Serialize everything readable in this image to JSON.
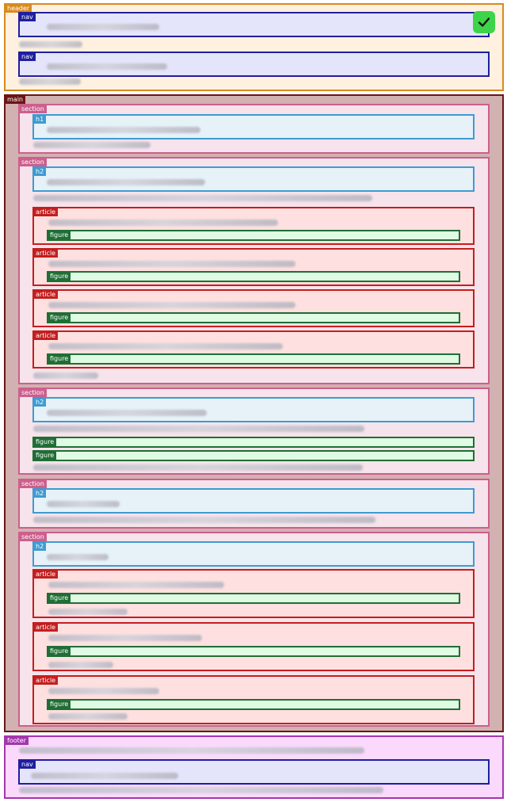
{
  "labels": {
    "header": "header",
    "nav": "nav",
    "main": "main",
    "section": "section",
    "h1": "h1",
    "h2": "h2",
    "article": "article",
    "figure": "figure",
    "footer": "footer"
  },
  "icons": {
    "status": "checkmark-icon"
  },
  "colors": {
    "header": "#d98a1e",
    "nav": "#1f1f9e",
    "main": "#6b1515",
    "section": "#cc5f8d",
    "heading": "#3f9bd1",
    "article": "#c41e1e",
    "figure": "#1f6e35",
    "footer": "#a634b0",
    "status_ok": "#3dd44a"
  }
}
